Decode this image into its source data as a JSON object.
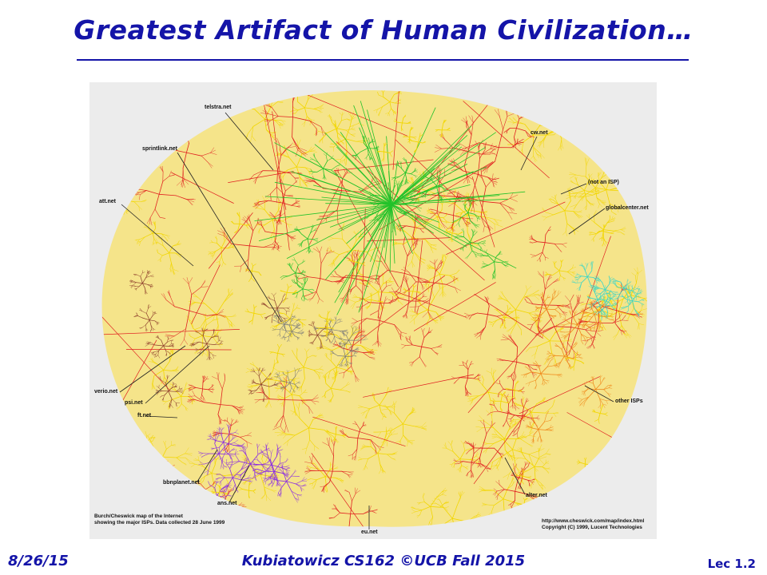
{
  "slide": {
    "title": "Greatest Artifact of Human Civilization…"
  },
  "map": {
    "image_description_icon": "internet-map-image",
    "colors": {
      "red": "#e02020",
      "yellow": "#f2d600",
      "green": "#22c22a",
      "purple": "#8a2be2",
      "cyan": "#3ad6c8",
      "orange": "#f08a1c",
      "brown": "#8b3a2a",
      "background": "#ececec"
    },
    "labels": {
      "telstra": "telstra.net",
      "sprintlink": "sprintlink.net",
      "cw": "cw.net",
      "not_isp": "(not an ISP)",
      "att": "att.net",
      "globalcenter": "globalcenter.net",
      "verio": "verio.net",
      "psi": "psi.net",
      "ft": "ft.net",
      "other_isps": "other ISPs",
      "bbnplanet": "bbnplanet.net",
      "ans": "ans.net",
      "alter": "alter.net",
      "eu": "eu.net"
    },
    "caption_left": {
      "line1": "Burch/Cheswick map of the Internet",
      "line2": "showing the major ISPs.  Data collected 28 June 1999"
    },
    "caption_right": {
      "line1": "http://www.cheswick.com/map/index.html",
      "line2": "Copyright (C) 1999, Lucent Technologies"
    }
  },
  "footer": {
    "date": "8/26/15",
    "course": "Kubiatowicz CS162 ©UCB Fall 2015",
    "lecture": "Lec 1.2"
  }
}
